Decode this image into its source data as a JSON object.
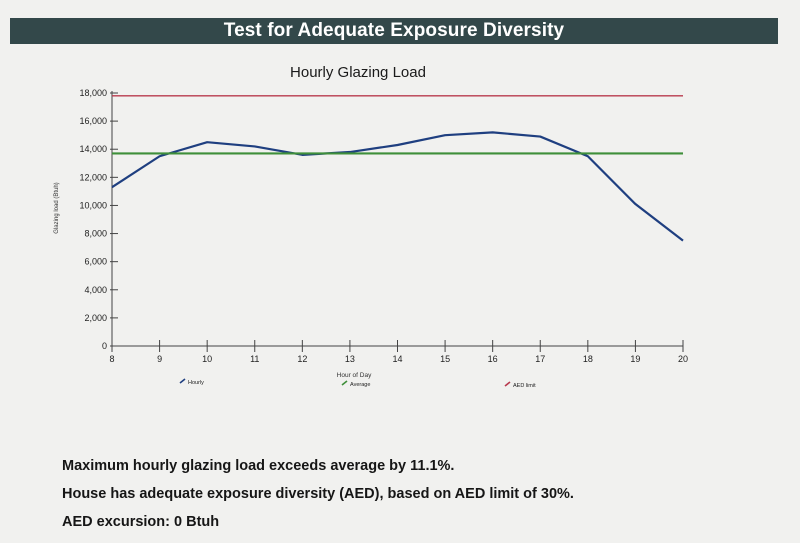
{
  "banner": {
    "title": "Test for Adequate Exposure Diversity"
  },
  "chart_data": {
    "type": "line",
    "title": "Hourly Glazing Load",
    "xlabel": "Hour of Day",
    "ylabel": "Glazing load (Btuh)",
    "x": [
      8,
      9,
      10,
      11,
      12,
      13,
      14,
      15,
      16,
      17,
      18,
      19,
      20
    ],
    "x_ticks": [
      "8",
      "9",
      "10",
      "11",
      "12",
      "13",
      "14",
      "15",
      "16",
      "17",
      "18",
      "19",
      "20"
    ],
    "xlim": [
      8,
      20
    ],
    "ylim": [
      0,
      18000
    ],
    "y_ticks": [
      "0",
      "2,000",
      "4,000",
      "6,000",
      "8,000",
      "10,000",
      "12,000",
      "14,000",
      "16,000",
      "18,000"
    ],
    "grid": false,
    "legend_position": "bottom",
    "series": [
      {
        "name": "Hourly",
        "color": "#1f3f80",
        "values": [
          11300,
          13500,
          14500,
          14200,
          13600,
          13800,
          14300,
          15000,
          15200,
          14900,
          13500,
          10100,
          7500
        ]
      },
      {
        "name": "Average",
        "color": "#3f8f3a",
        "values": [
          13700,
          13700,
          13700,
          13700,
          13700,
          13700,
          13700,
          13700,
          13700,
          13700,
          13700,
          13700,
          13700
        ]
      },
      {
        "name": "AED limit",
        "color": "#b83a4e",
        "values": [
          17800,
          17800,
          17800,
          17800,
          17800,
          17800,
          17800,
          17800,
          17800,
          17800,
          17800,
          17800,
          17800
        ]
      }
    ]
  },
  "summary": {
    "line1": "Maximum hourly glazing load exceeds average by 11.1%.",
    "line2": "House has adequate exposure diversity (AED), based on AED limit of 30%.",
    "line3": "AED excursion: 0 Btuh"
  }
}
